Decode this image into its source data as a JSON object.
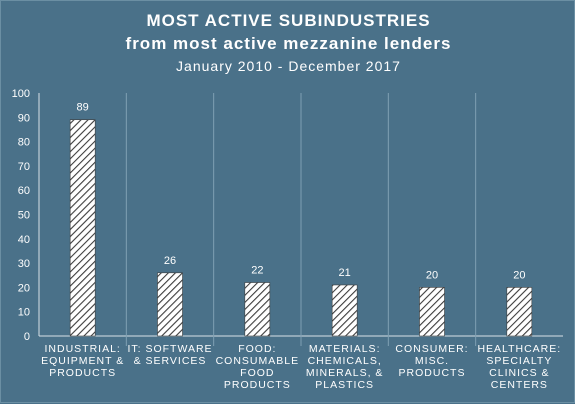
{
  "chart_data": {
    "type": "bar",
    "title": "MOST ACTIVE SUBINDUSTRIES",
    "subtitle": "from most active mezzanine lenders",
    "date_range": "January 2010 - December 2017",
    "categories": [
      [
        "INDUSTRIAL:",
        "EQUIPMENT &",
        "PRODUCTS"
      ],
      [
        "IT: SOFTWARE",
        "& SERVICES"
      ],
      [
        "FOOD:",
        "CONSUMABLE",
        "FOOD",
        "PRODUCTS"
      ],
      [
        "MATERIALS:",
        "CHEMICALS,",
        "MINERALS, &",
        "PLASTICS"
      ],
      [
        "CONSUMER:",
        "MISC.",
        "PRODUCTS"
      ],
      [
        "HEALTHCARE:",
        "SPECIALTY",
        "CLINICS &",
        "CENTERS"
      ]
    ],
    "values": [
      89,
      26,
      22,
      21,
      20,
      20
    ],
    "data_labels": [
      "89",
      "26",
      "22",
      "21",
      "20",
      "20"
    ],
    "ylim": [
      0,
      100
    ],
    "yticks": [
      "0",
      "10",
      "20",
      "30",
      "40",
      "50",
      "60",
      "70",
      "80",
      "90",
      "100"
    ],
    "grid": "vertical category separators",
    "legend": "none",
    "colors": {
      "background": "#4a7189",
      "bar_fill": "#ffffff",
      "bar_hatch": "#3c3c3c",
      "text": "#ffffff",
      "axis": "#d8e1e7"
    }
  }
}
